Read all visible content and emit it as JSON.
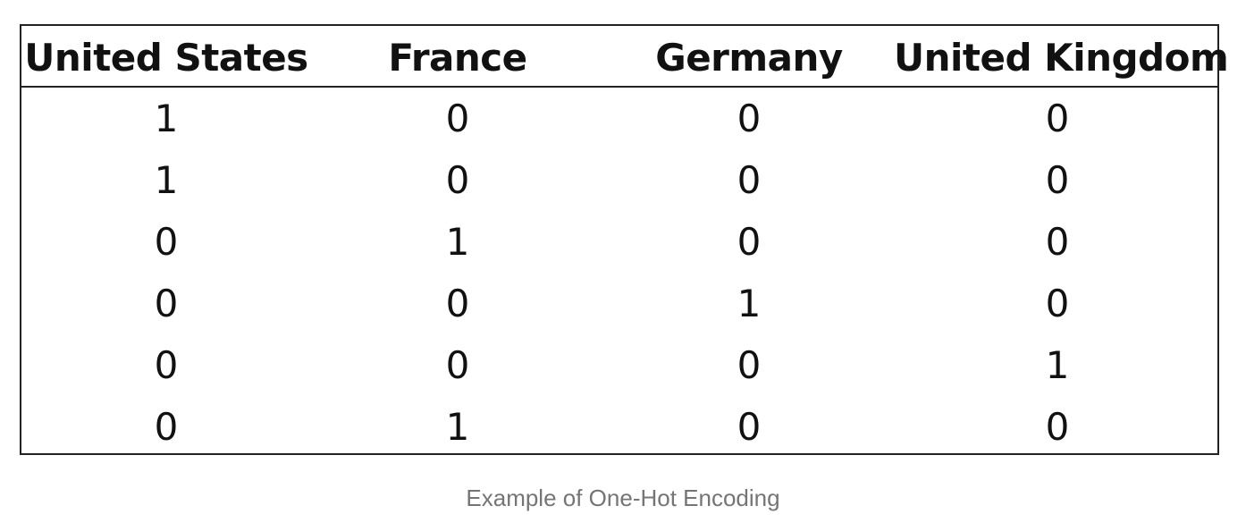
{
  "table": {
    "headers": [
      "United States",
      "France",
      "Germany",
      "United Kingdom"
    ],
    "rows": [
      [
        "1",
        "0",
        "0",
        "0"
      ],
      [
        "1",
        "0",
        "0",
        "0"
      ],
      [
        "0",
        "1",
        "0",
        "0"
      ],
      [
        "0",
        "0",
        "1",
        "0"
      ],
      [
        "0",
        "0",
        "0",
        "1"
      ],
      [
        "0",
        "1",
        "0",
        "0"
      ]
    ]
  },
  "caption": "Example of One-Hot Encoding",
  "colors": {
    "border": "#222222",
    "text": "#111111",
    "caption": "#757575"
  }
}
